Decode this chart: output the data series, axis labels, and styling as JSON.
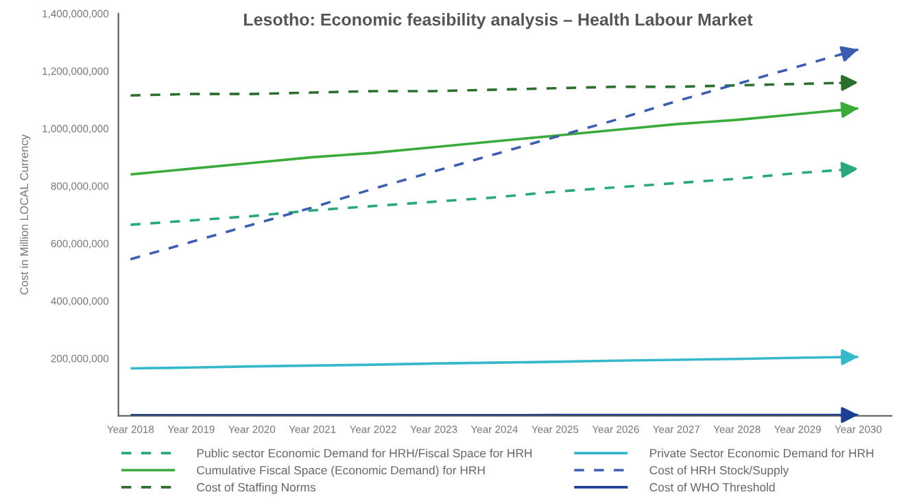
{
  "chart_data": {
    "type": "line",
    "title": "Lesotho: Economic feasibility analysis – Health Labour Market",
    "ylabel": "Cost in Million LOCAL Currency",
    "categories": [
      "Year 2018",
      "Year 2019",
      "Year 2020",
      "Year 2021",
      "Year 2022",
      "Year 2023",
      "Year 2024",
      "Year 2025",
      "Year 2026",
      "Year 2027",
      "Year 2028",
      "Year 2029",
      "Year 2030"
    ],
    "series": [
      {
        "name": "Public sector Economic Demand for HRH/Fiscal Space for HRH",
        "color": "#2aa87a",
        "line_style": "dashed",
        "values": [
          665000000,
          680000000,
          695000000,
          715000000,
          730000000,
          745000000,
          760000000,
          780000000,
          795000000,
          810000000,
          825000000,
          845000000,
          860000000
        ]
      },
      {
        "name": "Cumulative Fiscal Space (Economic Demand) for HRH",
        "color": "#3aaa3a",
        "line_style": "solid",
        "values": [
          840000000,
          860000000,
          880000000,
          900000000,
          915000000,
          935000000,
          955000000,
          975000000,
          995000000,
          1015000000,
          1030000000,
          1050000000,
          1070000000
        ]
      },
      {
        "name": "Cost of Staffing Norms",
        "color": "#2c6e2e",
        "line_style": "dashed",
        "values": [
          1115000000,
          1120000000,
          1120000000,
          1125000000,
          1130000000,
          1130000000,
          1135000000,
          1140000000,
          1145000000,
          1145000000,
          1150000000,
          1155000000,
          1160000000
        ]
      },
      {
        "name": "Private Sector Economic Demand for HRH",
        "color": "#35b8cc",
        "line_style": "solid",
        "values": [
          165000000,
          168000000,
          172000000,
          175000000,
          178000000,
          182000000,
          185000000,
          188000000,
          192000000,
          195000000,
          198000000,
          202000000,
          205000000
        ]
      },
      {
        "name": "Cost of HRH Stock/Supply",
        "color": "#3a5db0",
        "line_style": "dashed",
        "values": [
          545000000,
          605000000,
          665000000,
          725000000,
          790000000,
          850000000,
          910000000,
          970000000,
          1030000000,
          1095000000,
          1155000000,
          1215000000,
          1275000000
        ]
      },
      {
        "name": "Cost of WHO Threshold",
        "color": "#1d3f95",
        "line_style": "solid",
        "values": [
          2000000,
          2000000,
          2000000,
          2000000,
          2000000,
          2000000,
          2000000,
          3000000,
          3000000,
          3000000,
          3000000,
          3000000,
          3000000
        ]
      }
    ],
    "ylim": [
      0,
      1400000000
    ],
    "yticks": [
      {
        "value": 200000000,
        "label": "200,000,000"
      },
      {
        "value": 400000000,
        "label": "400,000,000"
      },
      {
        "value": 600000000,
        "label": "600,000,000"
      },
      {
        "value": 800000000,
        "label": "800,000,000"
      },
      {
        "value": 1000000000,
        "label": "1,000,000,000"
      },
      {
        "value": 1200000000,
        "label": "1,200,000,000"
      },
      {
        "value": 1400000000,
        "label": "1,400,000,000"
      }
    ],
    "grid": false,
    "legend": "bottom",
    "marker": "none"
  }
}
